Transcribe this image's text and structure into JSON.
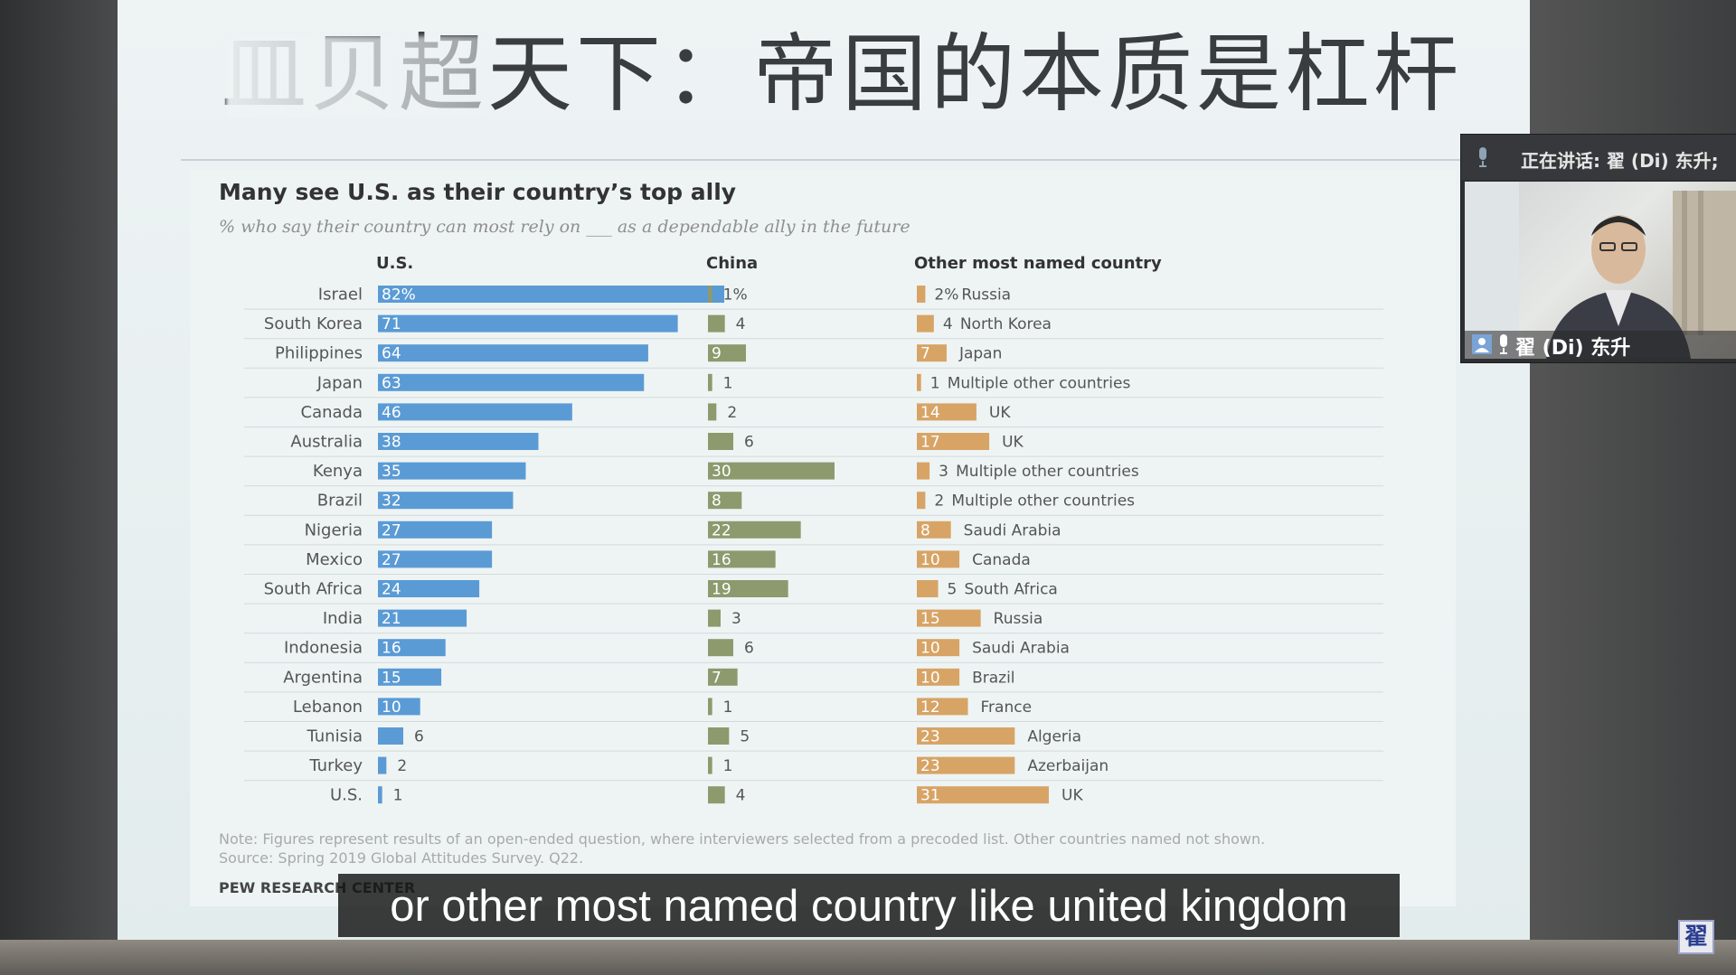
{
  "slide": {
    "title": "皿贝超天下：帝国的本质是杠杆"
  },
  "chart_data": {
    "type": "bar",
    "title": "Many see U.S. as their country’s top ally",
    "subtitle": "% who say their country can most rely on ___ as a dependable ally in the future",
    "column_headers": {
      "us": "U.S.",
      "china": "China",
      "other": "Other most named country"
    },
    "categories": [
      "Israel",
      "South Korea",
      "Philippines",
      "Japan",
      "Canada",
      "Australia",
      "Kenya",
      "Brazil",
      "Nigeria",
      "Mexico",
      "South Africa",
      "India",
      "Indonesia",
      "Argentina",
      "Lebanon",
      "Tunisia",
      "Turkey",
      "U.S."
    ],
    "series": [
      {
        "name": "U.S.",
        "values": [
          82,
          71,
          64,
          63,
          46,
          38,
          35,
          32,
          27,
          27,
          24,
          21,
          16,
          15,
          10,
          6,
          2,
          1
        ]
      },
      {
        "name": "China",
        "values": [
          1,
          4,
          9,
          1,
          2,
          6,
          30,
          8,
          22,
          16,
          19,
          3,
          6,
          7,
          1,
          5,
          1,
          4
        ]
      },
      {
        "name": "Other most named country",
        "values": [
          2,
          4,
          7,
          1,
          14,
          17,
          3,
          2,
          8,
          10,
          5,
          15,
          10,
          10,
          12,
          23,
          23,
          31
        ]
      }
    ],
    "value_labels": {
      "us": [
        "82%",
        "71",
        "64",
        "63",
        "46",
        "38",
        "35",
        "32",
        "27",
        "27",
        "24",
        "21",
        "16",
        "15",
        "10",
        "6",
        "2",
        "1"
      ],
      "china": [
        "1%",
        "4",
        "9",
        "1",
        "2",
        "6",
        "30",
        "8",
        "22",
        "16",
        "19",
        "3",
        "6",
        "7",
        "1",
        "5",
        "1",
        "4"
      ],
      "other": [
        "2%",
        "4",
        "7",
        "1",
        "14",
        "17",
        "3",
        "2",
        "8",
        "10",
        "5",
        "15",
        "10",
        "10",
        "12",
        "23",
        "23",
        "31"
      ]
    },
    "other_country_names": [
      "Russia",
      "North Korea",
      "Japan",
      "Multiple other countries",
      "UK",
      "UK",
      "Multiple other countries",
      "Multiple other countries",
      "Saudi Arabia",
      "Canada",
      "South Africa",
      "Russia",
      "Saudi Arabia",
      "Brazil",
      "France",
      "Algeria",
      "Azerbaijan",
      "UK"
    ],
    "note": "Note: Figures represent results of an open-ended question, where interviewers selected from a precoded list. Other countries named not shown.",
    "source": "Source: Spring 2019 Global Attitudes Survey. Q22.",
    "brand": "PEW RESEARCH CENTER",
    "colors": {
      "us": "#5b9bd5",
      "china": "#8c9a6e",
      "other": "#d7a466",
      "grid": "#d3dadb"
    }
  },
  "meeting": {
    "speaking_label": "正在讲话: 翟 (Di) 东升;",
    "participant_name": "翟 (Di) 东升"
  },
  "caption": {
    "text": "or other most named country like united kingdom"
  },
  "channel_logo": {
    "text": "翟"
  }
}
